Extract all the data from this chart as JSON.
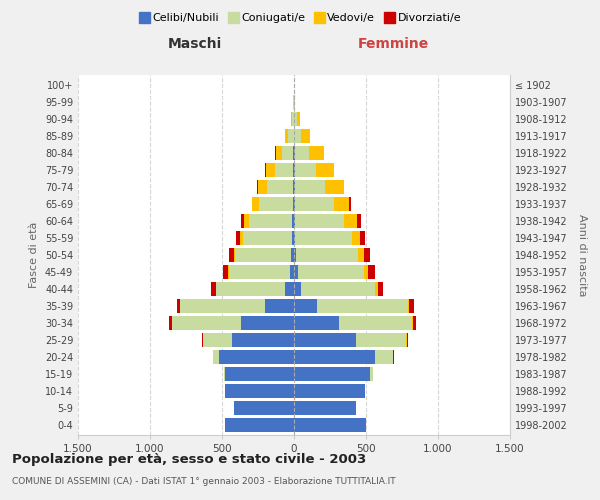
{
  "age_groups": [
    "0-4",
    "5-9",
    "10-14",
    "15-19",
    "20-24",
    "25-29",
    "30-34",
    "35-39",
    "40-44",
    "45-49",
    "50-54",
    "55-59",
    "60-64",
    "65-69",
    "70-74",
    "75-79",
    "80-84",
    "85-89",
    "90-94",
    "95-99",
    "100+"
  ],
  "birth_years": [
    "1998-2002",
    "1993-1997",
    "1988-1992",
    "1983-1987",
    "1978-1982",
    "1973-1977",
    "1968-1972",
    "1963-1967",
    "1958-1962",
    "1953-1957",
    "1948-1952",
    "1943-1947",
    "1938-1942",
    "1933-1937",
    "1928-1932",
    "1923-1927",
    "1918-1922",
    "1913-1917",
    "1908-1912",
    "1903-1907",
    "≤ 1902"
  ],
  "males": {
    "celibe": [
      480,
      420,
      480,
      480,
      520,
      430,
      370,
      200,
      60,
      30,
      20,
      15,
      15,
      10,
      10,
      5,
      5,
      0,
      0,
      0,
      0
    ],
    "coniugato": [
      0,
      0,
      0,
      5,
      40,
      200,
      480,
      590,
      480,
      420,
      390,
      340,
      300,
      230,
      180,
      130,
      80,
      40,
      15,
      5,
      2
    ],
    "vedovo": [
      0,
      0,
      0,
      0,
      0,
      0,
      0,
      5,
      5,
      5,
      10,
      20,
      30,
      50,
      60,
      60,
      40,
      20,
      5,
      2,
      0
    ],
    "divorziato": [
      0,
      0,
      0,
      0,
      5,
      10,
      20,
      20,
      30,
      35,
      30,
      25,
      20,
      5,
      5,
      5,
      5,
      0,
      0,
      0,
      0
    ]
  },
  "females": {
    "nubile": [
      500,
      430,
      490,
      530,
      560,
      430,
      310,
      160,
      50,
      25,
      15,
      10,
      10,
      5,
      5,
      5,
      5,
      0,
      0,
      0,
      0
    ],
    "coniugata": [
      0,
      0,
      5,
      20,
      130,
      350,
      510,
      630,
      510,
      460,
      430,
      390,
      340,
      270,
      210,
      150,
      100,
      50,
      20,
      5,
      2
    ],
    "vedova": [
      0,
      0,
      0,
      0,
      0,
      5,
      5,
      10,
      20,
      30,
      40,
      60,
      90,
      110,
      130,
      120,
      100,
      60,
      25,
      5,
      0
    ],
    "divorziata": [
      0,
      0,
      0,
      0,
      5,
      10,
      25,
      35,
      35,
      45,
      40,
      30,
      25,
      10,
      5,
      5,
      5,
      0,
      0,
      0,
      0
    ]
  },
  "colors": {
    "celibe": "#4472C4",
    "coniugato": "#C8DCA0",
    "vedovo": "#FFC000",
    "divorziato": "#CC0000"
  },
  "title": "Popolazione per età, sesso e stato civile - 2003",
  "subtitle": "COMUNE DI ASSEMINI (CA) - Dati ISTAT 1° gennaio 2003 - Elaborazione TUTTITALIA.IT",
  "label_maschi": "Maschi",
  "label_femmine": "Femmine",
  "ylabel_left": "Fasce di età",
  "ylabel_right": "Anni di nascita",
  "xlim": 1500,
  "xtick_positions": [
    -1500,
    -1000,
    -500,
    0,
    500,
    1000,
    1500
  ],
  "xtick_labels": [
    "1.500",
    "1.000",
    "500",
    "0",
    "500",
    "1.000",
    "1.500"
  ],
  "legend_labels": [
    "Celibi/Nubili",
    "Coniugati/e",
    "Vedovi/e",
    "Divorziati/e"
  ],
  "bg_color": "#f0f0f0",
  "plot_bg_color": "#ffffff"
}
